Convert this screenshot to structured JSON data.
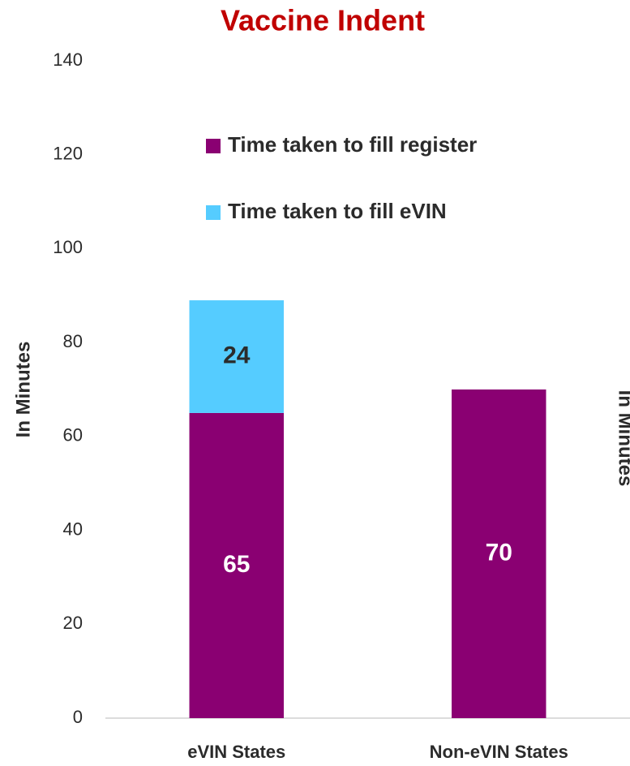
{
  "chart_data": {
    "type": "stacked_bar",
    "title": "Vaccine Indent",
    "ylabel": "In Minutes",
    "categories": [
      "eVIN States",
      "Non-eVIN States"
    ],
    "series": [
      {
        "name": "Time taken to fill register",
        "color": "#8a0072",
        "label_color": "#ffffff",
        "values": [
          65,
          70
        ]
      },
      {
        "name": "Time taken to fill eVIN",
        "color": "#55ccff",
        "label_color": "#2b2b2b",
        "values": [
          24,
          null
        ]
      }
    ],
    "ylim": [
      0,
      140
    ],
    "yticks": [
      0,
      20,
      40,
      60,
      80,
      100,
      120,
      140
    ],
    "grid": false
  },
  "neighbor_chart": {
    "ylabel": "In Minutes"
  }
}
